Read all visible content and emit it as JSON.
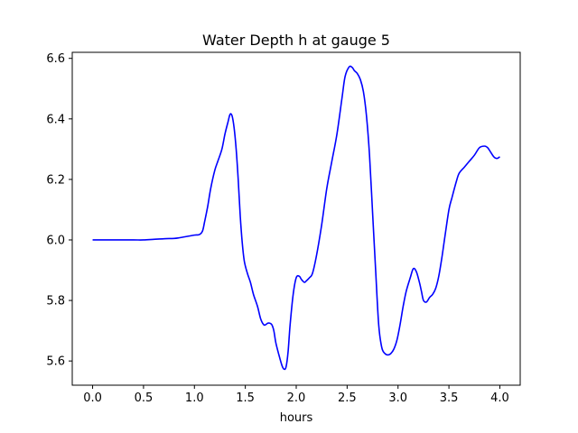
{
  "chart_data": {
    "type": "line",
    "title": "Water Depth h at gauge 5",
    "xlabel": "hours",
    "ylabel": "",
    "xlim": [
      -0.2,
      4.2
    ],
    "ylim": [
      5.52,
      6.62
    ],
    "xticks": [
      "0.0",
      "0.5",
      "1.0",
      "1.5",
      "2.0",
      "2.5",
      "3.0",
      "3.5",
      "4.0"
    ],
    "yticks": [
      "5.6",
      "5.8",
      "6.0",
      "6.2",
      "6.4",
      "6.6"
    ],
    "grid": false,
    "series": [
      {
        "color": "#0000ff",
        "x": [
          0.0,
          0.2,
          0.4,
          0.5,
          0.6,
          0.7,
          0.8,
          0.85,
          0.9,
          0.95,
          1.0,
          1.05,
          1.08,
          1.1,
          1.13,
          1.16,
          1.2,
          1.23,
          1.27,
          1.3,
          1.33,
          1.35,
          1.37,
          1.39,
          1.41,
          1.43,
          1.45,
          1.47,
          1.49,
          1.52,
          1.55,
          1.58,
          1.62,
          1.65,
          1.68,
          1.7,
          1.72,
          1.74,
          1.76,
          1.78,
          1.8,
          1.83,
          1.86,
          1.88,
          1.9,
          1.92,
          1.94,
          1.97,
          2.0,
          2.03,
          2.05,
          2.08,
          2.1,
          2.13,
          2.16,
          2.2,
          2.25,
          2.3,
          2.35,
          2.4,
          2.45,
          2.48,
          2.52,
          2.55,
          2.57,
          2.6,
          2.63,
          2.66,
          2.69,
          2.72,
          2.75,
          2.78,
          2.81,
          2.84,
          2.87,
          2.9,
          2.93,
          2.96,
          2.99,
          3.02,
          3.05,
          3.08,
          3.12,
          3.15,
          3.18,
          3.21,
          3.23,
          3.25,
          3.28,
          3.31,
          3.34,
          3.37,
          3.4,
          3.43,
          3.46,
          3.5,
          3.53,
          3.57,
          3.6,
          3.65,
          3.7,
          3.75,
          3.8,
          3.85,
          3.88,
          3.91,
          3.94,
          3.96,
          3.98,
          4.0
        ],
        "y": [
          6.0,
          6.0,
          6.0,
          6.0,
          6.002,
          6.004,
          6.005,
          6.007,
          6.01,
          6.013,
          6.016,
          6.018,
          6.03,
          6.06,
          6.11,
          6.17,
          6.23,
          6.26,
          6.3,
          6.35,
          6.39,
          6.415,
          6.41,
          6.37,
          6.3,
          6.2,
          6.08,
          5.99,
          5.93,
          5.89,
          5.86,
          5.82,
          5.78,
          5.74,
          5.72,
          5.72,
          5.725,
          5.725,
          5.72,
          5.7,
          5.66,
          5.62,
          5.585,
          5.573,
          5.58,
          5.63,
          5.72,
          5.82,
          5.875,
          5.88,
          5.87,
          5.86,
          5.865,
          5.875,
          5.89,
          5.95,
          6.05,
          6.17,
          6.26,
          6.35,
          6.47,
          6.54,
          6.572,
          6.57,
          6.56,
          6.55,
          6.53,
          6.49,
          6.41,
          6.28,
          6.09,
          5.9,
          5.72,
          5.645,
          5.625,
          5.62,
          5.625,
          5.64,
          5.67,
          5.72,
          5.78,
          5.83,
          5.875,
          5.905,
          5.895,
          5.86,
          5.83,
          5.8,
          5.795,
          5.81,
          5.82,
          5.84,
          5.88,
          5.94,
          6.01,
          6.1,
          6.14,
          6.19,
          6.22,
          6.24,
          6.26,
          6.28,
          6.305,
          6.31,
          6.305,
          6.29,
          6.275,
          6.27,
          6.27,
          6.275
        ]
      }
    ]
  }
}
